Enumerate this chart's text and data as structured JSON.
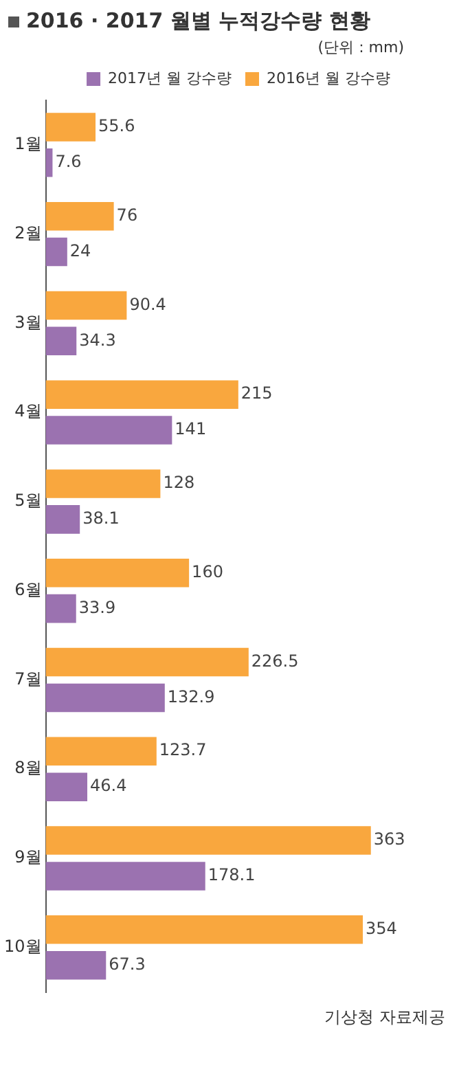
{
  "chart_data": {
    "type": "bar",
    "orientation": "horizontal",
    "title": "2016 · 2017 월별 누적강수량 현황",
    "subtitle": "(단위 : mm)",
    "categories": [
      "1월",
      "2월",
      "3월",
      "4월",
      "5월",
      "6월",
      "7월",
      "8월",
      "9월",
      "10월"
    ],
    "series": [
      {
        "name": "2016년 월 강수량",
        "color": "#f9a73e",
        "values": [
          55.6,
          76,
          90.4,
          215,
          128,
          160,
          226.5,
          123.7,
          363,
          354
        ]
      },
      {
        "name": "2017년 월 강수량",
        "color": "#9b72b0",
        "values": [
          7.6,
          24,
          34.3,
          141,
          38.1,
          33.9,
          132.9,
          46.4,
          178.1,
          67.3
        ]
      }
    ],
    "data_labels": true,
    "legend": "top right",
    "grid": false,
    "tick_labels": "y",
    "annotations": [
      "기상청 자료제공"
    ]
  }
}
